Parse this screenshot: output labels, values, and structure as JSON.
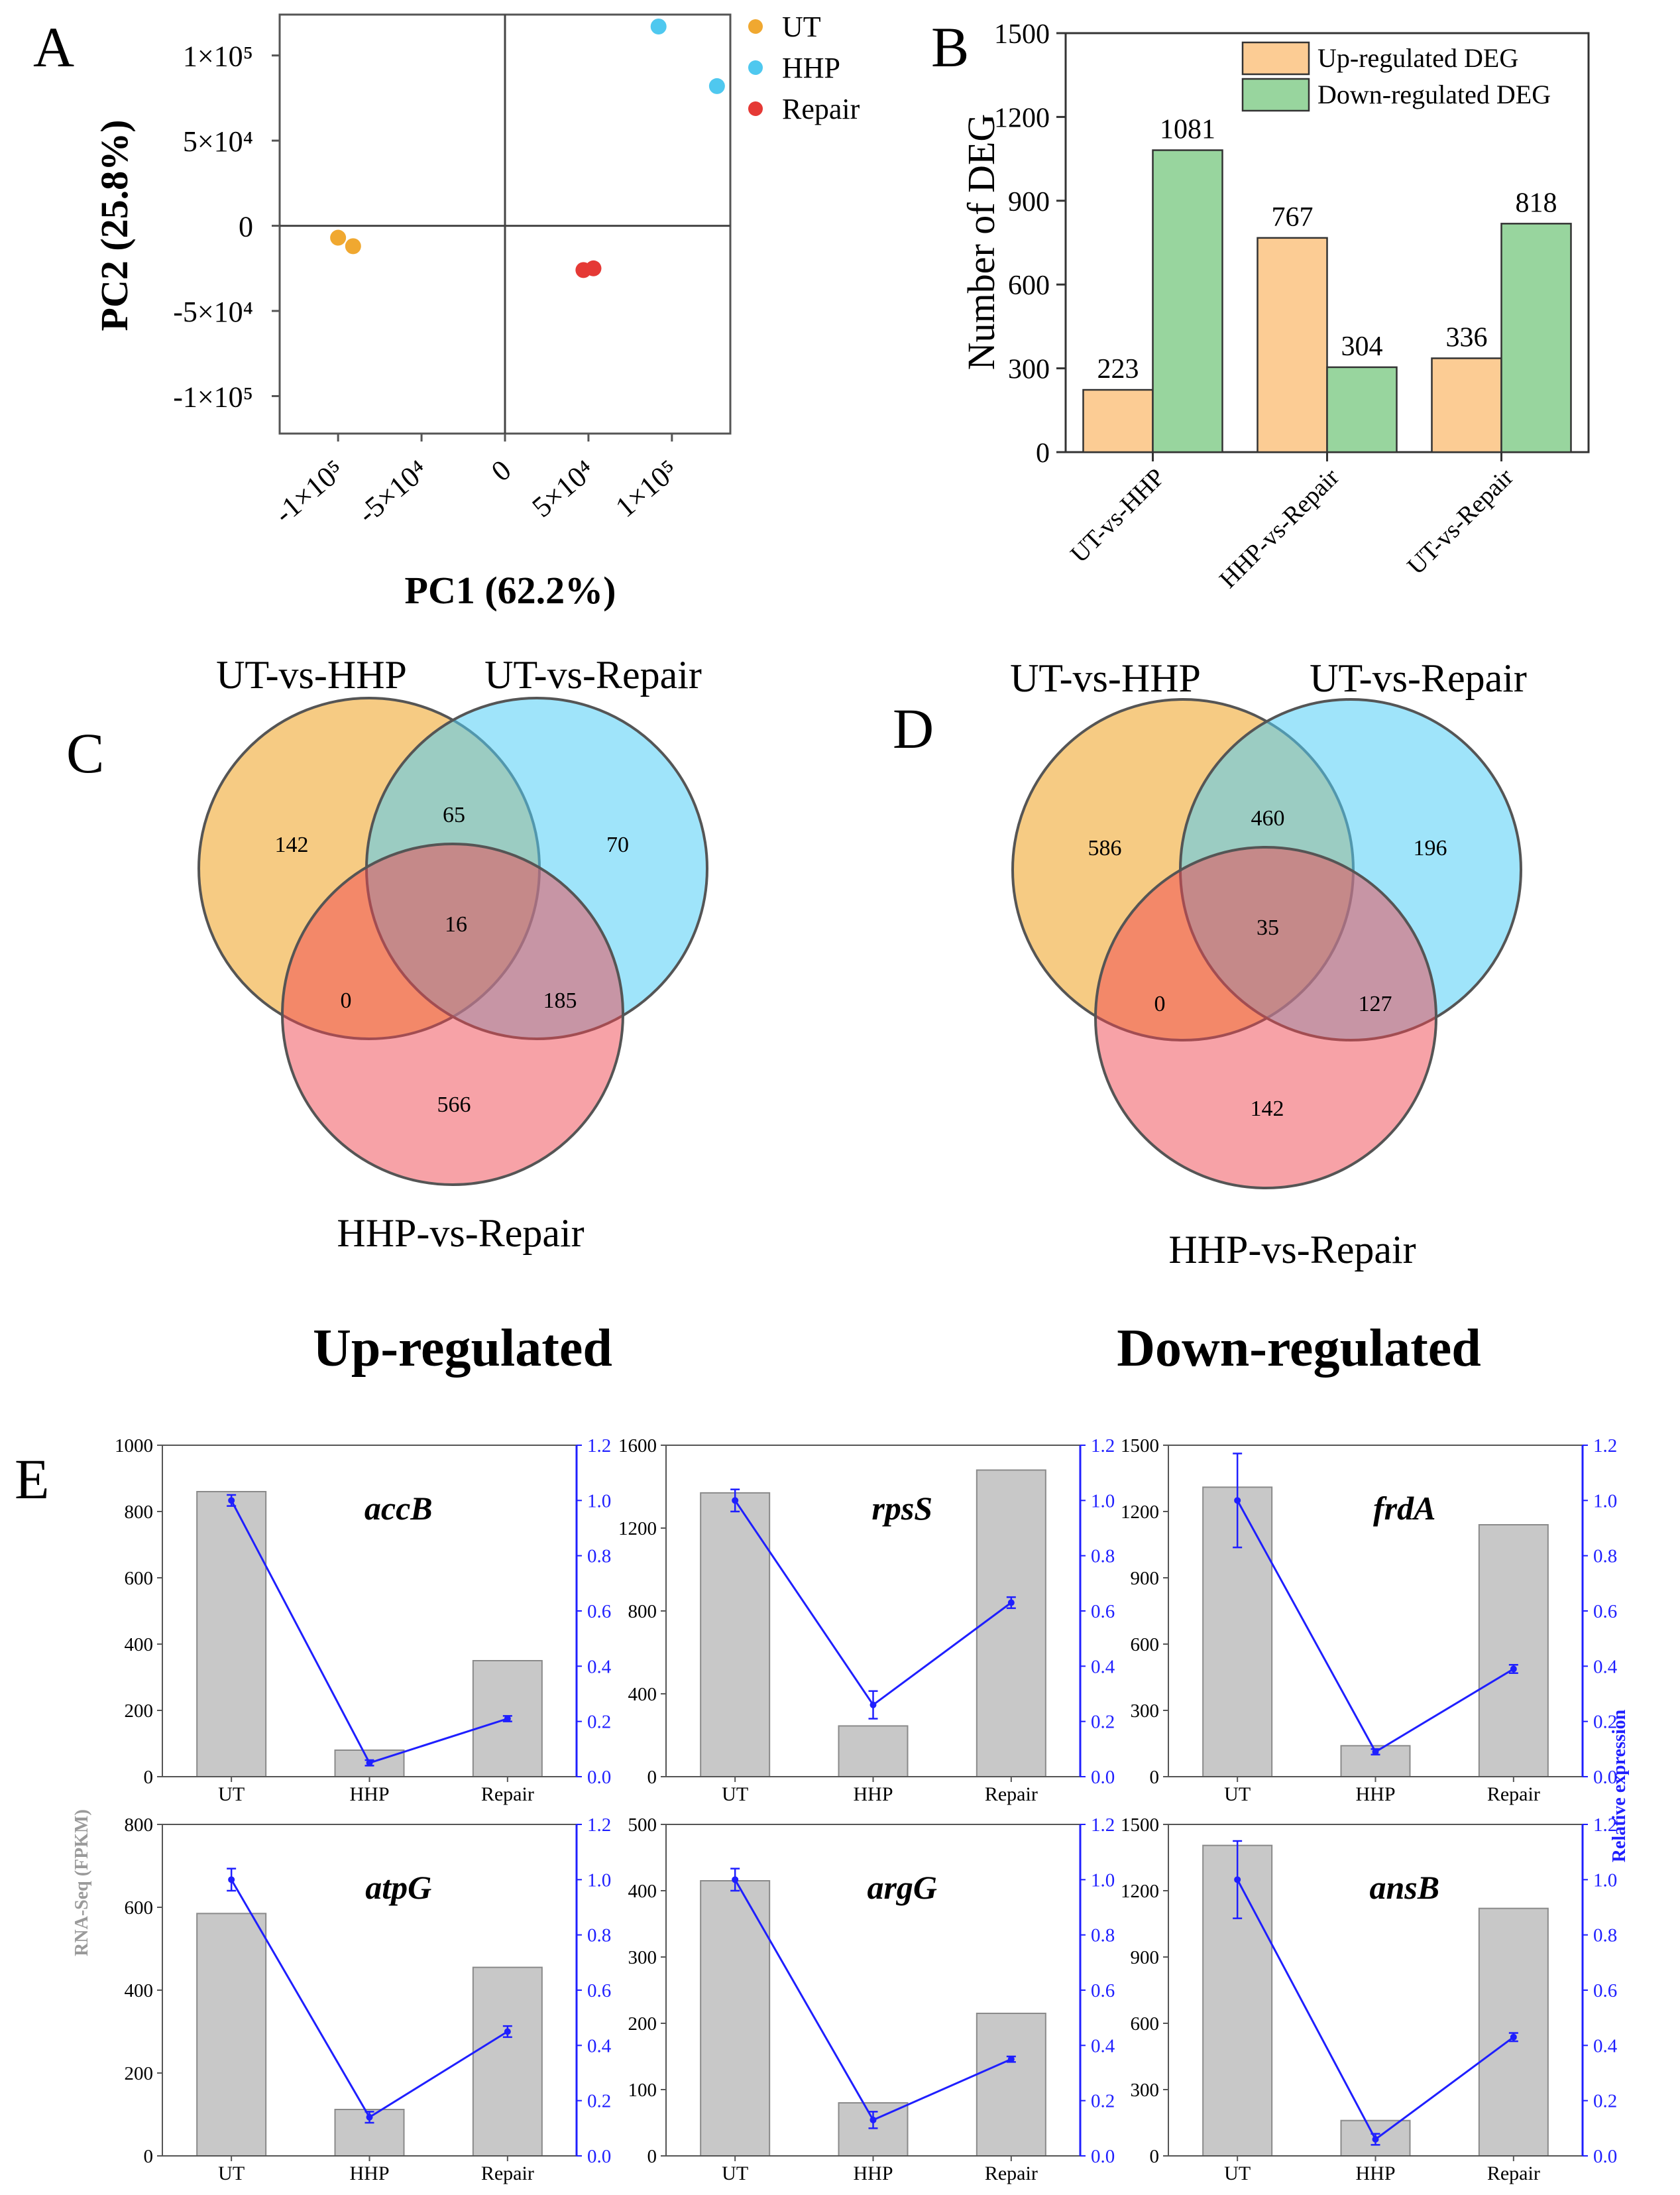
{
  "chart_data": [
    {
      "type": "scatter",
      "panel": "A",
      "xlabel": "PC1 (62.2%)",
      "ylabel": "PC2 (25.8%)",
      "xlim": [
        -135000,
        135000
      ],
      "ylim": [
        -122000,
        124000
      ],
      "xticks": [
        {
          "v": -100000,
          "label": "-1×10⁵"
        },
        {
          "v": -50000,
          "label": "-5×10⁴"
        },
        {
          "v": 0,
          "label": "0"
        },
        {
          "v": 50000,
          "label": "5×10⁴"
        },
        {
          "v": 100000,
          "label": "1×10⁵"
        }
      ],
      "yticks": [
        {
          "v": 100000,
          "label": "1×10⁵"
        },
        {
          "v": 50000,
          "label": "5×10⁴"
        },
        {
          "v": 0,
          "label": "0"
        },
        {
          "v": -50000,
          "label": "-5×10⁴"
        },
        {
          "v": -100000,
          "label": "-1×10⁵"
        }
      ],
      "series": [
        {
          "name": "UT",
          "color": "#F0A830",
          "points": [
            [
              -100000,
              -7000
            ],
            [
              -91000,
              -12000
            ]
          ]
        },
        {
          "name": "HHP",
          "color": "#4FC8EF",
          "points": [
            [
              92000,
              117000
            ],
            [
              127000,
              82000
            ]
          ]
        },
        {
          "name": "Repair",
          "color": "#E53935",
          "points": [
            [
              47000,
              -26000
            ],
            [
              53000,
              -25000
            ]
          ]
        }
      ]
    },
    {
      "type": "bar",
      "panel": "B",
      "ylabel": "Number of DEG",
      "ylim": [
        0,
        1500
      ],
      "yticks": [
        0,
        300,
        600,
        900,
        1200,
        1500
      ],
      "categories": [
        "UT-vs-HHP",
        "HHP-vs-Repair",
        "UT-vs-Repair"
      ],
      "series": [
        {
          "name": "Up-regulated DEG",
          "color": "#FCCC94",
          "values": [
            223,
            767,
            336
          ]
        },
        {
          "name": "Down-regulated DEG",
          "color": "#98D59E",
          "values": [
            1081,
            304,
            818
          ]
        }
      ],
      "legend": "top-right"
    },
    {
      "type": "venn",
      "panel": "C",
      "title": "Up-regulated",
      "sets": [
        "UT-vs-HHP",
        "UT-vs-Repair",
        "HHP-vs-Repair"
      ],
      "regions": {
        "only_a": "142",
        "a_b": "65",
        "only_b": "70",
        "abc": "16",
        "a_c": "0",
        "b_c": "185",
        "only_c": "566"
      }
    },
    {
      "type": "venn",
      "panel": "D",
      "title": "Down-regulated",
      "sets": [
        "UT-vs-HHP",
        "UT-vs-Repair",
        "HHP-vs-Repair"
      ],
      "regions": {
        "only_a": "586",
        "a_b": "460",
        "only_b": "196",
        "abc": "35",
        "a_c": "0",
        "b_c": "127",
        "only_c": "142"
      }
    },
    {
      "type": "bar+line",
      "panel": "E",
      "left_axis_label": "RNA-Seq (FPKM)",
      "right_axis_label": "Relative expression",
      "categories": [
        "UT",
        "HHP",
        "Repair"
      ],
      "right_ylim": [
        0,
        1.2
      ],
      "right_yticks": [
        "0.0",
        "0.2",
        "0.4",
        "0.6",
        "0.8",
        "1.0",
        "1.2"
      ],
      "genes": [
        {
          "gene": "accB",
          "fpkm": [
            860,
            80,
            350
          ],
          "left_max": 1000,
          "left_ticks": [
            0,
            200,
            400,
            600,
            800,
            1000
          ],
          "rel": [
            1.0,
            0.05,
            0.21
          ],
          "err": [
            0.02,
            0.01,
            0.01
          ]
        },
        {
          "gene": "rpsS",
          "fpkm": [
            1370,
            245,
            1480
          ],
          "left_max": 1600,
          "left_ticks": [
            0,
            400,
            800,
            1200,
            1600
          ],
          "rel": [
            1.0,
            0.26,
            0.63
          ],
          "err": [
            0.04,
            0.05,
            0.02
          ]
        },
        {
          "gene": "frdA",
          "fpkm": [
            1310,
            140,
            1140
          ],
          "left_max": 1500,
          "left_ticks": [
            0,
            300,
            600,
            900,
            1200,
            1500
          ],
          "rel": [
            1.0,
            0.09,
            0.39
          ],
          "err": [
            0.17,
            0.01,
            0.015
          ]
        },
        {
          "gene": "atpG",
          "fpkm": [
            585,
            112,
            455
          ],
          "left_max": 800,
          "left_ticks": [
            0,
            200,
            400,
            600,
            800
          ],
          "rel": [
            1.0,
            0.14,
            0.45
          ],
          "err": [
            0.04,
            0.02,
            0.02
          ]
        },
        {
          "gene": "argG",
          "fpkm": [
            415,
            80,
            215
          ],
          "left_max": 500,
          "left_ticks": [
            0,
            100,
            200,
            300,
            400,
            500
          ],
          "rel": [
            1.0,
            0.13,
            0.35
          ],
          "err": [
            0.04,
            0.03,
            0.01
          ]
        },
        {
          "gene": "ansB",
          "fpkm": [
            1405,
            160,
            1120
          ],
          "left_max": 1500,
          "left_ticks": [
            0,
            300,
            600,
            900,
            1200,
            1500
          ],
          "rel": [
            1.0,
            0.06,
            0.43
          ],
          "err": [
            0.14,
            0.02,
            0.015
          ]
        }
      ]
    }
  ],
  "panel_labels": {
    "a": "A",
    "b": "B",
    "c": "C",
    "d": "D",
    "e": "E"
  },
  "colors": {
    "axis": "#333333",
    "gray_bar": "#C8C8C8",
    "blue": "#1F1FFF",
    "ut": "#F0A830",
    "hhp": "#4FC8EF",
    "repair": "#E53935"
  }
}
